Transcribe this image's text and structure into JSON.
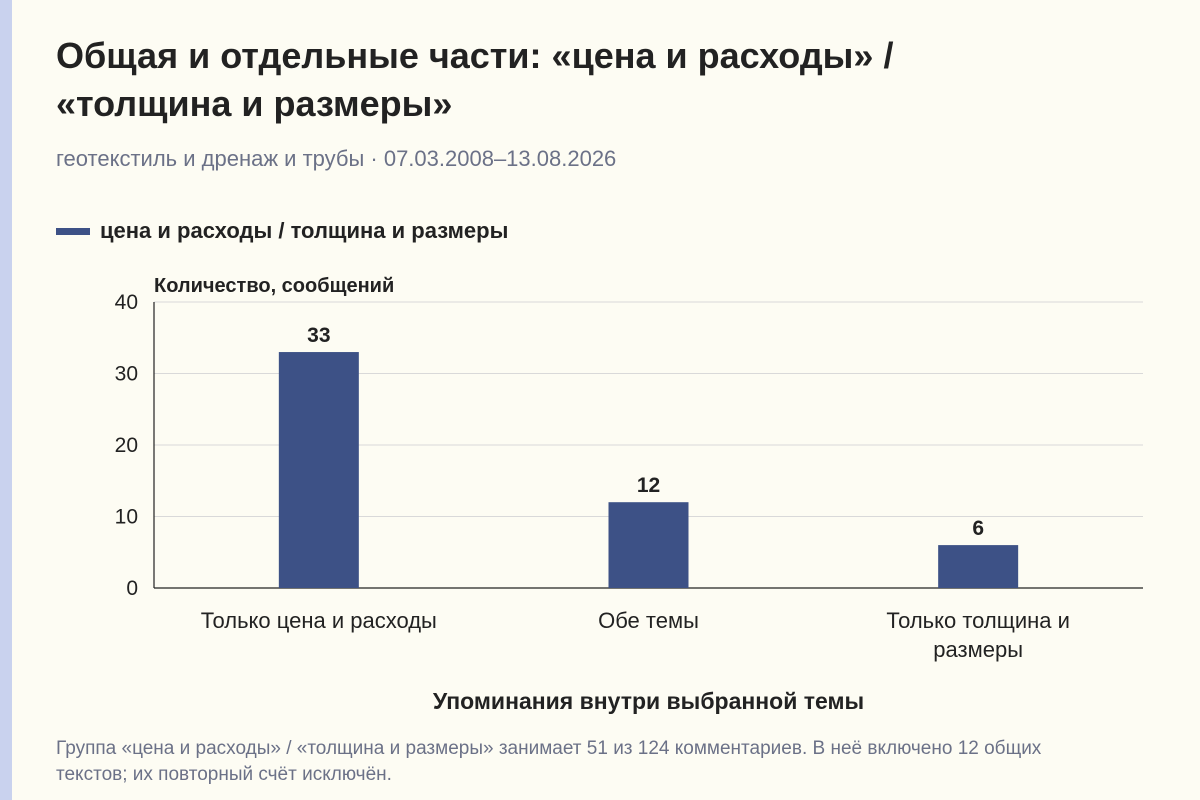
{
  "header": {
    "title_line1": "Общая и отдельные части: «цена и расходы» /",
    "title_line2": "«толщина и размеры»",
    "subtitle": "геотекстиль и дренаж и трубы · 07.03.2008–13.08.2026"
  },
  "legend": {
    "label": "цена и расходы / толщина и размеры"
  },
  "footnote": "Группа «цена и расходы» / «толщина и размеры» занимает 51 из 124 комментариев. В неё включено 12 общих текстов; их повторный счёт исключён.",
  "colors": {
    "bar": "#3d5186",
    "accent": "#c9d2ee",
    "grid": "#d9d9d9"
  },
  "chart_data": {
    "type": "bar",
    "title": "Общая и отдельные части: «цена и расходы» / «толщина и размеры»",
    "subtitle": "геотекстиль и дренаж и трубы · 07.03.2008–13.08.2026",
    "categories": [
      [
        "Только цена и расходы"
      ],
      [
        "Обе темы"
      ],
      [
        "Только толщина и",
        "размеры"
      ]
    ],
    "series": [
      {
        "name": "цена и расходы / толщина и размеры",
        "values": [
          33,
          12,
          6
        ]
      }
    ],
    "data_labels": [
      "33",
      "12",
      "6"
    ],
    "ylabel": "Количество, сообщений",
    "xlabel": "Упоминания внутри выбранной темы",
    "ylim": [
      0,
      40
    ],
    "yticks": [
      0,
      10,
      20,
      30,
      40
    ],
    "grid": true,
    "legend_position": "top-left"
  }
}
